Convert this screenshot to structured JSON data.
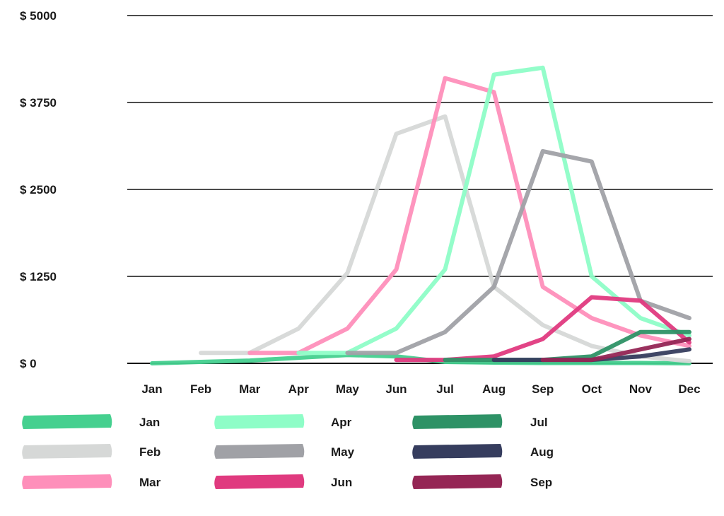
{
  "chart_data": {
    "type": "line",
    "x": [
      "Jan",
      "Feb",
      "Mar",
      "Apr",
      "May",
      "Jun",
      "Jul",
      "Aug",
      "Sep",
      "Oct",
      "Nov",
      "Dec"
    ],
    "y_ticks": [
      "$ 0",
      "$ 1250",
      "$ 2500",
      "$ 3750",
      "$ 5000"
    ],
    "ylim": [
      0,
      5000
    ],
    "grid": true,
    "legend_position": "bottom",
    "series": [
      {
        "name": "Jan",
        "color": "#45d08f",
        "values": [
          0,
          20,
          40,
          80,
          120,
          100,
          20,
          10,
          5,
          5,
          5,
          0
        ]
      },
      {
        "name": "Feb",
        "color": "#d6d8d7",
        "values": [
          null,
          150,
          150,
          500,
          1300,
          3300,
          3550,
          1100,
          550,
          250,
          100,
          30
        ]
      },
      {
        "name": "Mar",
        "color": "#fe8fba",
        "values": [
          null,
          null,
          150,
          150,
          500,
          1350,
          4100,
          3900,
          1100,
          650,
          400,
          250
        ]
      },
      {
        "name": "Apr",
        "color": "#8efdc7",
        "values": [
          null,
          null,
          null,
          150,
          150,
          500,
          1350,
          4150,
          4250,
          1250,
          650,
          400
        ]
      },
      {
        "name": "May",
        "color": "#a0a1a6",
        "values": [
          null,
          null,
          null,
          null,
          150,
          150,
          450,
          1100,
          3050,
          2900,
          900,
          650
        ]
      },
      {
        "name": "Jun",
        "color": "#e03a7f",
        "values": [
          null,
          null,
          null,
          null,
          null,
          50,
          50,
          100,
          350,
          950,
          900,
          300
        ]
      },
      {
        "name": "Jul",
        "color": "#2e9266",
        "values": [
          null,
          null,
          null,
          null,
          null,
          null,
          50,
          50,
          50,
          100,
          450,
          450
        ]
      },
      {
        "name": "Aug",
        "color": "#363d5e",
        "values": [
          null,
          null,
          null,
          null,
          null,
          null,
          null,
          50,
          50,
          50,
          100,
          200
        ]
      },
      {
        "name": "Sep",
        "color": "#952655",
        "values": [
          null,
          null,
          null,
          null,
          null,
          null,
          null,
          null,
          50,
          50,
          200,
          350
        ]
      }
    ]
  }
}
